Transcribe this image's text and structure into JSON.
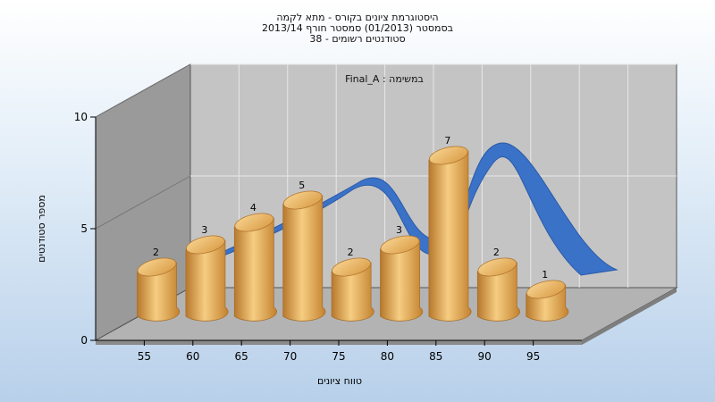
{
  "chart_data": {
    "type": "bar",
    "title": "היסטוגרמת ציונים בקורס - מתא לקמה",
    "subtitle_1": "בסמסטר  (01/2013)  סמסטר חורף 2013/14",
    "subtitle_2": "סטודנטים רשומים - 38",
    "task_label": "Final_A : במשימה",
    "xlabel": "טווח ציונים",
    "ylabel": "מספר סטודנטים",
    "x_ticks": [
      "55",
      "60",
      "65",
      "70",
      "75",
      "80",
      "85",
      "90",
      "95"
    ],
    "y_ticks": [
      "0",
      "5",
      "10"
    ],
    "ylim": [
      0,
      10
    ],
    "values": [
      2,
      3,
      4,
      5,
      2,
      3,
      7,
      2,
      1
    ],
    "grid": true,
    "bar_color": "#e8a848",
    "curve_color": "#3a72c8",
    "back_wall_color": "#c4c4c4",
    "side_wall_color": "#9a9a9a",
    "floor_color": "#b3b3b3"
  }
}
